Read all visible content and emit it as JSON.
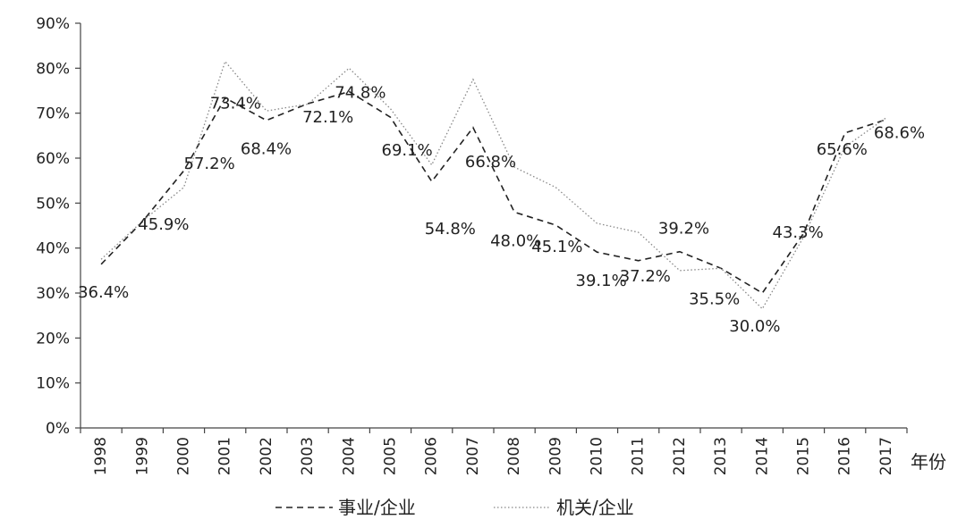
{
  "chart_data": {
    "type": "line",
    "x": [
      "1998",
      "1999",
      "2000",
      "2001",
      "2002",
      "2003",
      "2004",
      "2005",
      "2006",
      "2007",
      "2008",
      "2009",
      "2010",
      "2011",
      "2012",
      "2013",
      "2014",
      "2015",
      "2016",
      "2017"
    ],
    "xlabel": "年份",
    "ylabel": "",
    "ylim": [
      0,
      90
    ],
    "y_ticks": [
      "0%",
      "10%",
      "20%",
      "30%",
      "40%",
      "50%",
      "60%",
      "70%",
      "80%",
      "90%"
    ],
    "grid": false,
    "legend_position": "bottom",
    "series": [
      {
        "name": "事业/企业",
        "style": "dashed",
        "color": "#222222",
        "values": [
          36.4,
          45.9,
          57.2,
          73.4,
          68.4,
          72.1,
          74.8,
          69.1,
          54.8,
          66.8,
          48.0,
          45.1,
          39.1,
          37.2,
          39.2,
          35.5,
          30.0,
          43.3,
          65.6,
          68.6
        ],
        "labels": [
          "36.4%",
          "45.9%",
          "57.2%",
          "73.4%",
          "68.4%",
          "72.1%",
          "74.8%",
          "69.1%",
          "54.8%",
          "66.8%",
          "48.0%",
          "45.1%",
          "39.1%",
          "37.2%",
          "39.2%",
          "35.5%",
          "30.0%",
          "43.3%",
          "65.6%",
          "68.6%"
        ]
      },
      {
        "name": "机关/企业",
        "style": "dotted",
        "color": "#888888",
        "values": [
          37.5,
          46.0,
          53.5,
          81.5,
          70.5,
          72.0,
          80.0,
          71.0,
          58.5,
          77.5,
          58.0,
          53.5,
          45.5,
          43.5,
          35.0,
          35.5,
          26.5,
          42.5,
          62.5,
          69.0
        ]
      }
    ]
  }
}
